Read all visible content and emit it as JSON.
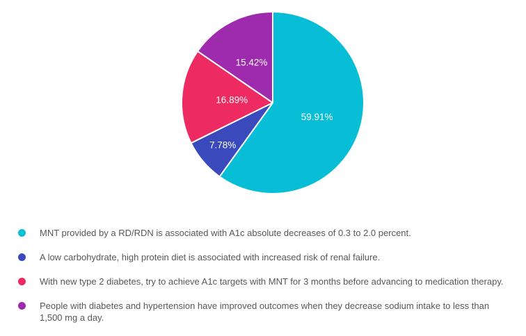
{
  "page": {
    "background": "#ffffff"
  },
  "chart_data": {
    "type": "pie",
    "title": "",
    "start_angle_deg": 0,
    "direction": "clockwise",
    "legend_position": "bottom-left",
    "label_color": "#ffffff",
    "slice_border_color": "#ffffff",
    "slices": [
      {
        "name": "MNT provided by a RD/RDN is associated with A1c absolute decreases of 0.3 to 2.0 percent.",
        "value": 59.91,
        "label": "59.91%",
        "color": "#08bed6",
        "label_radius_frac": 0.51
      },
      {
        "name": "A low carbohydrate, high protein diet is associated with increased risk of renal failure.",
        "value": 7.78,
        "label": "7.78%",
        "color": "#3a4abc",
        "label_radius_frac": 0.72
      },
      {
        "name": "With new type 2 diabetes, try to achieve A1c targets with MNT for 3 months before advancing to medication therapy.",
        "value": 16.89,
        "label": "16.89%",
        "color": "#ee2a62",
        "label_radius_frac": 0.45
      },
      {
        "name": "People with diabetes and hypertension have improved outcomes when they decrease sodium intake to less than 1,500 mg a day.",
        "value": 15.42,
        "label": "15.42%",
        "color": "#9e2bae",
        "label_radius_frac": 0.5
      }
    ]
  },
  "legend": {
    "text_color": "#575757",
    "items": [
      {
        "text": "MNT provided by a RD/RDN is associated with A1c absolute decreases of 0.3 to 2.0 percent.",
        "color": "#08bed6"
      },
      {
        "text": "A low carbohydrate, high protein diet is associated with increased risk of renal failure.",
        "color": "#3a4abc"
      },
      {
        "text": "With new type 2 diabetes, try to achieve A1c targets with MNT for 3 months before advancing to medication therapy.",
        "color": "#ee2a62"
      },
      {
        "text": "People with diabetes and hypertension have improved outcomes when they decrease sodium intake to less than 1,500 mg a day.",
        "color": "#9e2bae"
      }
    ]
  }
}
